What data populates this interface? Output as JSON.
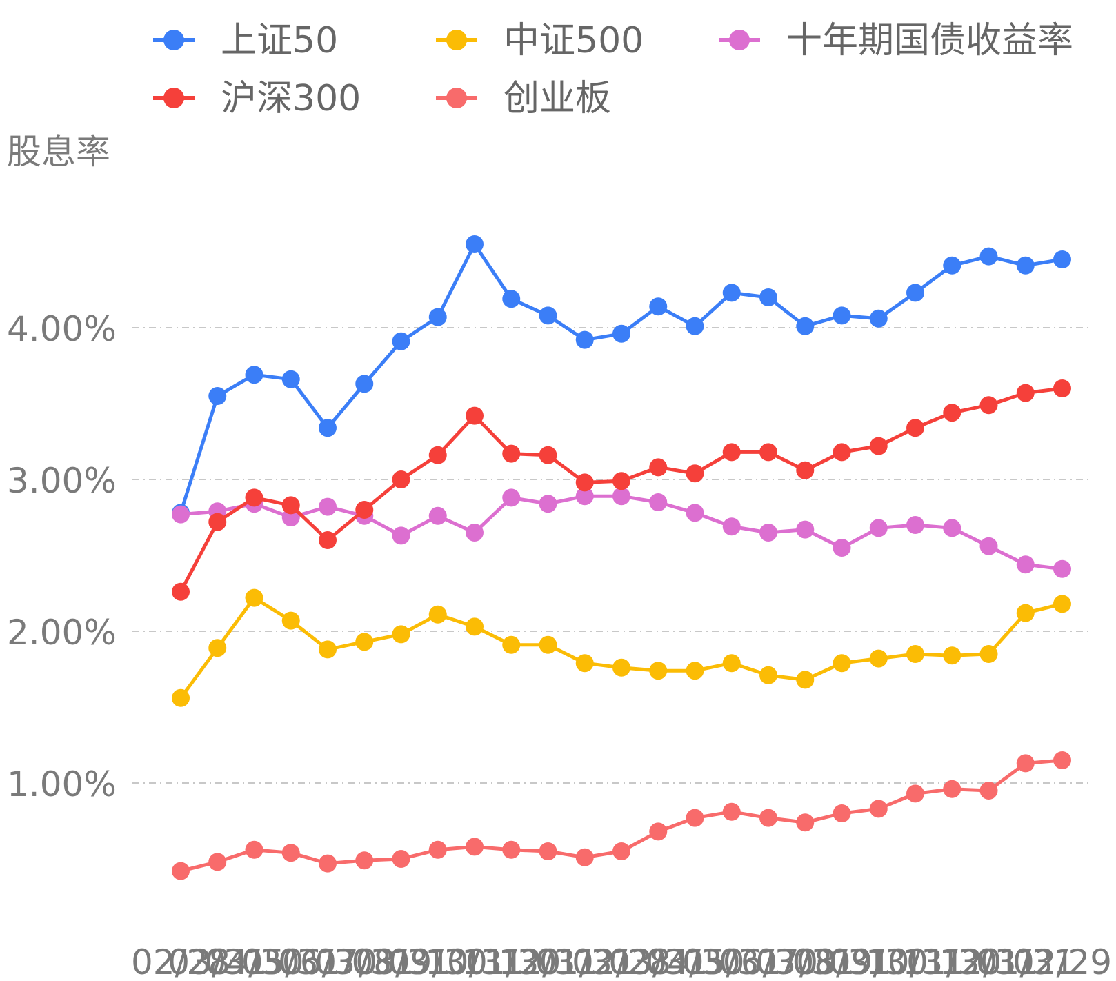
{
  "chart_data": {
    "type": "line",
    "ylabel": "股息率",
    "ylim": [
      0,
      0.05
    ],
    "yticks": [
      {
        "value": 0.01,
        "label": "1.00%"
      },
      {
        "value": 0.02,
        "label": "2.00%"
      },
      {
        "value": 0.03,
        "label": "3.00%"
      },
      {
        "value": 0.04,
        "label": "4.00%"
      }
    ],
    "x": [
      "02/28",
      "03/31",
      "04/30",
      "05/31",
      "06/30",
      "07/31",
      "08/31",
      "09/30",
      "10/31",
      "11/30",
      "12/31",
      "01/31",
      "02/28",
      "03/31",
      "04/30",
      "05/31",
      "06/30",
      "07/31",
      "08/31",
      "09/30",
      "10/31",
      "11/30",
      "12/31",
      "01/31",
      "02/29"
    ],
    "x_tick_labels": [
      "02/28",
      "03/31",
      "04/30",
      "05/31",
      "06/30",
      "07/31",
      "08/31",
      "09/30",
      "10/31",
      "11/30",
      "12/31",
      "01/31",
      "02/28",
      "03/31",
      "04/30",
      "05/31",
      "06/30",
      "07/31",
      "08/31",
      "09/30",
      "10/31",
      "11/30",
      "12/31",
      "01/31",
      "02/29"
    ],
    "x_tick_display": "02/28/03/04/05/06/07/08/09/10/11/12/01/02/03/04",
    "legend_position": "top",
    "series": [
      {
        "name": "上证50",
        "color": "#3b7ef7",
        "values": [
          0.0278,
          0.0355,
          0.0369,
          0.0366,
          0.0334,
          0.0363,
          0.0391,
          0.0407,
          0.0455,
          0.0419,
          0.0408,
          0.0392,
          0.0396,
          0.0414,
          0.0401,
          0.0423,
          0.042,
          0.0401,
          0.0408,
          0.0406,
          0.0423,
          0.0441,
          0.0447,
          0.0441,
          0.0445
        ]
      },
      {
        "name": "中证500",
        "color": "#fbbc05",
        "values": [
          0.0156,
          0.0189,
          0.0222,
          0.0207,
          0.0188,
          0.0193,
          0.0198,
          0.0211,
          0.0203,
          0.0191,
          0.0191,
          0.0179,
          0.0176,
          0.0174,
          0.0174,
          0.0179,
          0.0171,
          0.0168,
          0.0179,
          0.0182,
          0.0185,
          0.0184,
          0.0185,
          0.0212,
          0.0218
        ]
      },
      {
        "name": "十年期国债收益率",
        "color": "#dc6fd0",
        "values": [
          0.0277,
          0.0279,
          0.0284,
          0.0275,
          0.0282,
          0.0276,
          0.0263,
          0.0276,
          0.0265,
          0.0288,
          0.0284,
          0.0289,
          0.0289,
          0.0285,
          0.0278,
          0.0269,
          0.0265,
          0.0267,
          0.0255,
          0.0268,
          0.027,
          0.0268,
          0.0256,
          0.0244,
          0.0241
        ]
      },
      {
        "name": "沪深300",
        "color": "#f5403a",
        "values": [
          0.0226,
          0.0272,
          0.0288,
          0.0283,
          0.026,
          0.028,
          0.03,
          0.0316,
          0.0342,
          0.0317,
          0.0316,
          0.0298,
          0.0299,
          0.0308,
          0.0304,
          0.0318,
          0.0318,
          0.0306,
          0.0318,
          0.0322,
          0.0334,
          0.0344,
          0.0349,
          0.0357,
          0.036
        ]
      },
      {
        "name": "创业板",
        "color": "#f86b6b",
        "values": [
          0.0042,
          0.0048,
          0.0056,
          0.0054,
          0.0047,
          0.0049,
          0.005,
          0.0056,
          0.0058,
          0.0056,
          0.0055,
          0.0051,
          0.0055,
          0.0068,
          0.0077,
          0.0081,
          0.0077,
          0.0074,
          0.008,
          0.0083,
          0.0093,
          0.0096,
          0.0095,
          0.0113,
          0.0115
        ]
      }
    ]
  }
}
